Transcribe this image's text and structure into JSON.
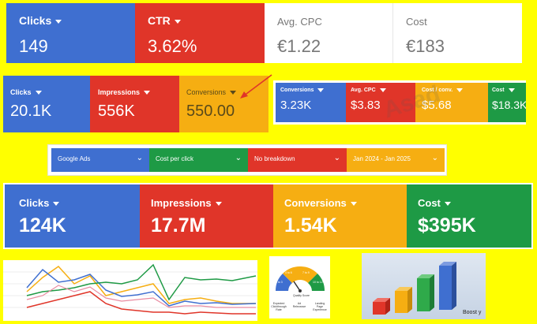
{
  "row1": [
    {
      "label": "Clicks",
      "value": "149",
      "color": "#3f6fd0",
      "caret": true
    },
    {
      "label": "CTR",
      "value": "3.62%",
      "color": "#e03529",
      "caret": true
    },
    {
      "label": "Avg. CPC",
      "value": "€1.22",
      "color": "#ffffff",
      "caret": false
    },
    {
      "label": "Cost",
      "value": "€183",
      "color": "#ffffff",
      "caret": false
    }
  ],
  "row2a": [
    {
      "label": "Clicks",
      "value": "20.1K",
      "color": "#3f6fd0"
    },
    {
      "label": "Impressions",
      "value": "556K",
      "color": "#e03529"
    },
    {
      "label": "Conversions",
      "value": "550.00",
      "color": "#f6ae12"
    }
  ],
  "row2b": [
    {
      "label": "Conversions",
      "value": "3.23K",
      "color": "#3f6fd0"
    },
    {
      "label": "Avg. CPC",
      "value": "$3.83",
      "color": "#e03529"
    },
    {
      "label": "Cost / conv.",
      "value": "$5.68",
      "color": "#f6ae12"
    },
    {
      "label": "Cost",
      "value": "$18.3K",
      "color": "#1e9a45"
    }
  ],
  "filters": [
    {
      "label": "Google Ads",
      "color": "#3f6fd0"
    },
    {
      "label": "Cost per click",
      "color": "#1e9a45"
    },
    {
      "label": "No breakdown",
      "color": "#e03529"
    },
    {
      "label": "Jan 2024 - Jan 2025",
      "color": "#f6ae12"
    }
  ],
  "row4": [
    {
      "label": "Clicks",
      "value": "124K",
      "color": "#3f6fd0"
    },
    {
      "label": "Impressions",
      "value": "17.7M",
      "color": "#e03529"
    },
    {
      "label": "Conversions",
      "value": "1.54K",
      "color": "#f6ae12"
    },
    {
      "label": "Cost",
      "value": "$395K",
      "color": "#1e9a45"
    }
  ],
  "gauge": {
    "segments": [
      "1 to 3",
      "4 to 6",
      "7 to 9",
      "10 to 12"
    ],
    "caption": "Quality Score",
    "legend": [
      "Expected Clickthrough Rate",
      "Ad Relevance",
      "Landing Page Experience"
    ]
  },
  "boost_text": "Boost y",
  "watermark": "Asad",
  "annotation_color": "#e03529"
}
